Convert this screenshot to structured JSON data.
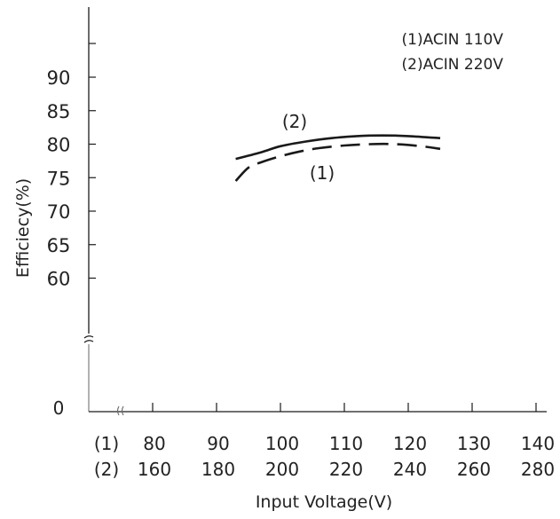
{
  "chart_data": {
    "type": "line",
    "title": "",
    "xlabel": "Input Voltage(V)",
    "ylabel": "Efficiecy(%)",
    "x_axis_rows": [
      {
        "tag": "(1)",
        "ticks": [
          "80",
          "90",
          "100",
          "110",
          "120",
          "130",
          "140"
        ]
      },
      {
        "tag": "(2)",
        "ticks": [
          "160",
          "180",
          "200",
          "220",
          "240",
          "260",
          "280"
        ]
      }
    ],
    "x_ticks_row1": [
      80,
      90,
      100,
      110,
      120,
      130,
      140
    ],
    "y_ticks": [
      "90",
      "85",
      "80",
      "75",
      "70",
      "65",
      "60"
    ],
    "y_tick_values": [
      90,
      85,
      80,
      75,
      70,
      65,
      60
    ],
    "y_zero_label": "0",
    "axis_break": true,
    "legend": [
      "(1)ACIN 110V",
      "(2)ACIN 220V"
    ],
    "legend_position": "top-right",
    "grid": false,
    "series": [
      {
        "name": "(1)",
        "line_style": "dashed",
        "x_row1": [
          93,
          95,
          97,
          100,
          103,
          106,
          110,
          114,
          118,
          122,
          125
        ],
        "y": [
          74.5,
          76.5,
          77.3,
          78.2,
          78.9,
          79.4,
          79.8,
          80.0,
          80.0,
          79.7,
          79.3
        ]
      },
      {
        "name": "(2)",
        "line_style": "solid",
        "x_row1": [
          93,
          97,
          100,
          104,
          108,
          112,
          116,
          120,
          125
        ],
        "y": [
          77.8,
          78.8,
          79.7,
          80.4,
          80.9,
          81.2,
          81.3,
          81.2,
          80.9
        ]
      }
    ]
  },
  "colors": {
    "line": "#1a1a1a",
    "text": "#222222",
    "background": "#ffffff"
  }
}
